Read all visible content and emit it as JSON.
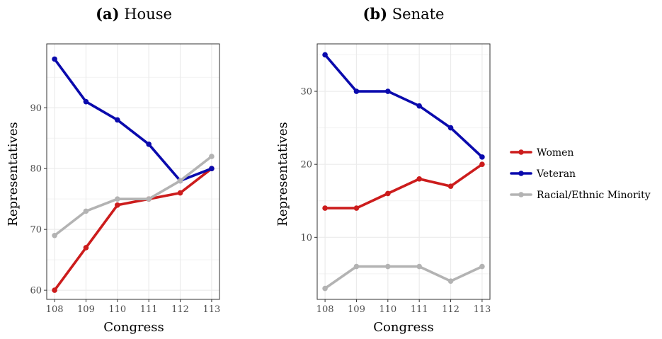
{
  "legend": {
    "items": [
      {
        "label": "Women",
        "color": "#cc1c1c"
      },
      {
        "label": "Veteran",
        "color": "#0a0aad"
      },
      {
        "label": "Racial/Ethnic Minority",
        "color": "#b3b3b3"
      }
    ]
  },
  "chart_data": [
    {
      "type": "line",
      "title_prefix": "(a)",
      "title_text": "House",
      "xlabel": "Congress",
      "ylabel": "Representatives",
      "categories": [
        "108",
        "109",
        "110",
        "111",
        "112",
        "113"
      ],
      "ylim": [
        58.5,
        100.5
      ],
      "yticks": [
        60,
        70,
        80,
        90
      ],
      "grid": true,
      "series": [
        {
          "name": "Women",
          "color": "#cc1c1c",
          "values": [
            60,
            67,
            74,
            75,
            76,
            80
          ]
        },
        {
          "name": "Veteran",
          "color": "#0a0aad",
          "values": [
            98,
            91,
            88,
            84,
            78,
            80
          ]
        },
        {
          "name": "Racial/Ethnic Minority",
          "color": "#b3b3b3",
          "values": [
            69,
            73,
            75,
            75,
            78,
            82
          ]
        }
      ]
    },
    {
      "type": "line",
      "title_prefix": "(b)",
      "title_text": "Senate",
      "xlabel": "Congress",
      "ylabel": "Representatives",
      "categories": [
        "108",
        "109",
        "110",
        "111",
        "112",
        "113"
      ],
      "ylim": [
        1.5,
        36.5
      ],
      "yticks": [
        10,
        20,
        30
      ],
      "grid": true,
      "series": [
        {
          "name": "Women",
          "color": "#cc1c1c",
          "values": [
            14,
            14,
            16,
            18,
            17,
            20
          ]
        },
        {
          "name": "Veteran",
          "color": "#0a0aad",
          "values": [
            35,
            30,
            30,
            28,
            25,
            21
          ]
        },
        {
          "name": "Racial/Ethnic Minority",
          "color": "#b3b3b3",
          "values": [
            3,
            6,
            6,
            6,
            4,
            6
          ]
        }
      ]
    }
  ]
}
